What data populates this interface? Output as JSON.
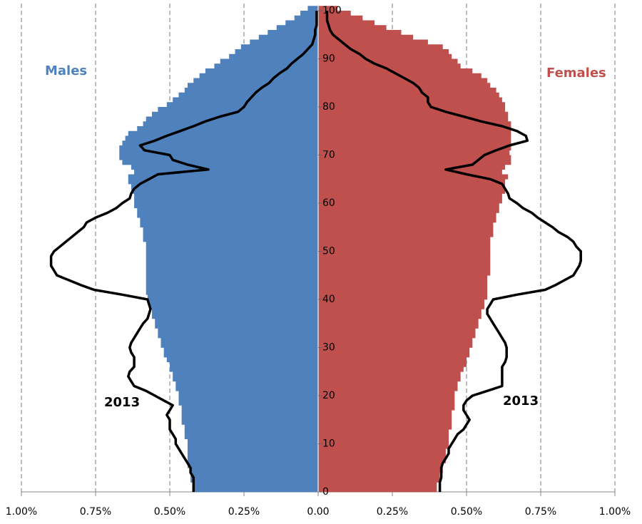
{
  "chart_data": {
    "type": "pyramid",
    "ages": [
      0,
      1,
      2,
      3,
      4,
      5,
      6,
      7,
      8,
      9,
      10,
      11,
      12,
      13,
      14,
      15,
      16,
      17,
      18,
      19,
      20,
      21,
      22,
      23,
      24,
      25,
      26,
      27,
      28,
      29,
      30,
      31,
      32,
      33,
      34,
      35,
      36,
      37,
      38,
      39,
      40,
      41,
      42,
      43,
      44,
      45,
      46,
      47,
      48,
      49,
      50,
      51,
      52,
      53,
      54,
      55,
      56,
      57,
      58,
      59,
      60,
      61,
      62,
      63,
      64,
      65,
      66,
      67,
      68,
      69,
      70,
      71,
      72,
      73,
      74,
      75,
      76,
      77,
      78,
      79,
      80,
      81,
      82,
      83,
      84,
      85,
      86,
      87,
      88,
      89,
      90,
      91,
      92,
      93,
      94,
      95,
      96,
      97,
      98,
      99,
      100
    ],
    "series": [
      {
        "name": "Males",
        "type": "bar",
        "side": "left",
        "color": "#4f81bd",
        "values": [
          0.42,
          0.42,
          0.43,
          0.43,
          0.43,
          0.44,
          0.44,
          0.44,
          0.44,
          0.44,
          0.44,
          0.45,
          0.45,
          0.45,
          0.46,
          0.46,
          0.46,
          0.46,
          0.47,
          0.47,
          0.47,
          0.48,
          0.48,
          0.49,
          0.49,
          0.5,
          0.5,
          0.51,
          0.52,
          0.52,
          0.53,
          0.53,
          0.54,
          0.54,
          0.55,
          0.55,
          0.56,
          0.56,
          0.57,
          0.57,
          0.575,
          0.58,
          0.58,
          0.58,
          0.58,
          0.58,
          0.58,
          0.58,
          0.58,
          0.58,
          0.58,
          0.58,
          0.59,
          0.59,
          0.59,
          0.6,
          0.6,
          0.61,
          0.61,
          0.62,
          0.62,
          0.62,
          0.63,
          0.63,
          0.64,
          0.64,
          0.62,
          0.63,
          0.66,
          0.67,
          0.67,
          0.67,
          0.66,
          0.65,
          0.64,
          0.61,
          0.59,
          0.58,
          0.56,
          0.54,
          0.51,
          0.49,
          0.47,
          0.45,
          0.44,
          0.42,
          0.4,
          0.38,
          0.35,
          0.33,
          0.3,
          0.28,
          0.26,
          0.23,
          0.2,
          0.17,
          0.14,
          0.11,
          0.08,
          0.06,
          0.035
        ]
      },
      {
        "name": "Females",
        "type": "bar",
        "side": "right",
        "color": "#c0504d",
        "values": [
          0.4,
          0.4,
          0.41,
          0.41,
          0.42,
          0.42,
          0.43,
          0.43,
          0.43,
          0.44,
          0.44,
          0.44,
          0.44,
          0.45,
          0.45,
          0.45,
          0.45,
          0.46,
          0.46,
          0.46,
          0.46,
          0.47,
          0.47,
          0.48,
          0.48,
          0.49,
          0.5,
          0.5,
          0.51,
          0.51,
          0.52,
          0.52,
          0.53,
          0.53,
          0.54,
          0.54,
          0.55,
          0.55,
          0.56,
          0.56,
          0.57,
          0.57,
          0.57,
          0.57,
          0.57,
          0.58,
          0.58,
          0.58,
          0.58,
          0.58,
          0.58,
          0.58,
          0.58,
          0.59,
          0.59,
          0.59,
          0.6,
          0.6,
          0.61,
          0.61,
          0.62,
          0.62,
          0.63,
          0.63,
          0.63,
          0.64,
          0.62,
          0.63,
          0.65,
          0.65,
          0.645,
          0.65,
          0.65,
          0.65,
          0.65,
          0.65,
          0.65,
          0.64,
          0.64,
          0.63,
          0.63,
          0.62,
          0.61,
          0.6,
          0.58,
          0.57,
          0.55,
          0.52,
          0.48,
          0.47,
          0.45,
          0.44,
          0.42,
          0.37,
          0.32,
          0.28,
          0.23,
          0.19,
          0.15,
          0.11,
          0.065
        ]
      },
      {
        "name": "2013",
        "type": "line",
        "side": "left",
        "color": "#000000",
        "values": [
          0.42,
          0.42,
          0.42,
          0.42,
          0.43,
          0.43,
          0.44,
          0.45,
          0.46,
          0.47,
          0.48,
          0.48,
          0.49,
          0.5,
          0.5,
          0.5,
          0.51,
          0.5,
          0.49,
          0.52,
          0.55,
          0.58,
          0.62,
          0.63,
          0.64,
          0.635,
          0.62,
          0.62,
          0.62,
          0.63,
          0.635,
          0.63,
          0.62,
          0.61,
          0.6,
          0.59,
          0.575,
          0.57,
          0.565,
          0.57,
          0.575,
          0.66,
          0.755,
          0.8,
          0.84,
          0.88,
          0.89,
          0.9,
          0.9,
          0.9,
          0.89,
          0.87,
          0.85,
          0.83,
          0.81,
          0.79,
          0.78,
          0.75,
          0.71,
          0.68,
          0.66,
          0.635,
          0.63,
          0.62,
          0.6,
          0.57,
          0.54,
          0.37,
          0.44,
          0.49,
          0.5,
          0.585,
          0.6,
          0.55,
          0.51,
          0.465,
          0.42,
          0.38,
          0.33,
          0.27,
          0.25,
          0.24,
          0.225,
          0.21,
          0.19,
          0.165,
          0.15,
          0.13,
          0.105,
          0.09,
          0.07,
          0.05,
          0.035,
          0.02,
          0.015,
          0.01,
          0.01,
          0.005,
          0.005,
          0.005,
          0.005
        ]
      },
      {
        "name": "2013",
        "type": "line",
        "side": "right",
        "color": "#000000",
        "values": [
          0.41,
          0.41,
          0.41,
          0.415,
          0.415,
          0.415,
          0.42,
          0.43,
          0.44,
          0.44,
          0.45,
          0.46,
          0.47,
          0.49,
          0.5,
          0.51,
          0.5,
          0.49,
          0.49,
          0.5,
          0.52,
          0.57,
          0.62,
          0.62,
          0.62,
          0.62,
          0.62,
          0.63,
          0.635,
          0.635,
          0.635,
          0.63,
          0.62,
          0.61,
          0.6,
          0.59,
          0.58,
          0.57,
          0.57,
          0.58,
          0.59,
          0.67,
          0.765,
          0.8,
          0.83,
          0.86,
          0.87,
          0.88,
          0.885,
          0.885,
          0.885,
          0.87,
          0.86,
          0.84,
          0.81,
          0.79,
          0.765,
          0.74,
          0.72,
          0.69,
          0.67,
          0.645,
          0.64,
          0.63,
          0.62,
          0.58,
          0.5,
          0.43,
          0.52,
          0.54,
          0.56,
          0.6,
          0.645,
          0.705,
          0.7,
          0.67,
          0.62,
          0.55,
          0.49,
          0.43,
          0.38,
          0.37,
          0.37,
          0.35,
          0.34,
          0.32,
          0.29,
          0.26,
          0.23,
          0.19,
          0.16,
          0.14,
          0.11,
          0.09,
          0.07,
          0.05,
          0.04,
          0.035,
          0.03,
          0.03,
          0.03
        ]
      }
    ],
    "xlim": [
      -1,
      1
    ],
    "xticks": [
      {
        "value": -1,
        "label": "1.00%"
      },
      {
        "value": -0.75,
        "label": "0.75%"
      },
      {
        "value": -0.5,
        "label": "0.50%"
      },
      {
        "value": -0.25,
        "label": "0.25%"
      },
      {
        "value": 0,
        "label": "0.00"
      },
      {
        "value": 0.25,
        "label": "0.25%"
      },
      {
        "value": 0.5,
        "label": "0.50%"
      },
      {
        "value": 0.75,
        "label": "0.75%"
      },
      {
        "value": 1,
        "label": "1.00%"
      }
    ],
    "ylim": [
      0,
      100
    ],
    "yticks": [
      0,
      10,
      20,
      30,
      40,
      50,
      60,
      70,
      80,
      90,
      100
    ],
    "grid": true
  }
}
